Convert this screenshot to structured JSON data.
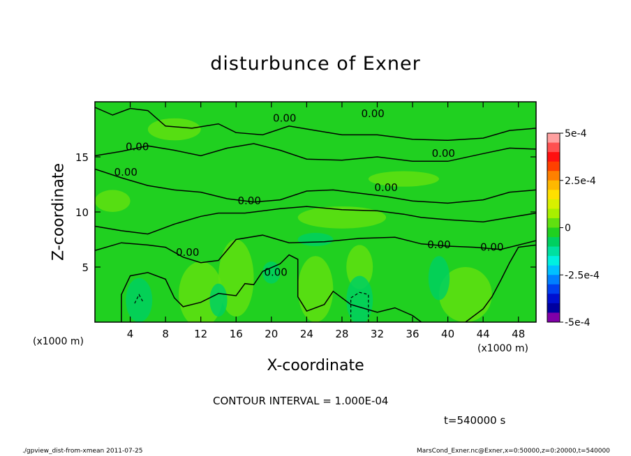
{
  "title": "disturbunce of Exner",
  "x_unit_left": "(x1000 m)",
  "x_unit_right": "(x1000 m)",
  "contour_interval": "CONTOUR INTERVAL = 1.000E-04",
  "time": "t=540000 s",
  "footer_left": "./gpview_dist-from-xmean  2011-07-25",
  "footer_right": "MarsCond_Exner.nc@Exner,x=0:50000,z=0:20000,t=540000",
  "chart_data": {
    "type": "heatmap",
    "title": "disturbunce of Exner",
    "xlabel": "X-coordinate",
    "ylabel": "Z-coordinate",
    "x_unit": "(x1000 m)",
    "xlim": [
      0,
      50
    ],
    "ylim": [
      0,
      20
    ],
    "x_ticks": [
      4,
      8,
      12,
      16,
      20,
      24,
      28,
      32,
      36,
      40,
      44,
      48
    ],
    "y_ticks": [
      5,
      10,
      15
    ],
    "contour_labels": [
      {
        "text": "0.00",
        "x": 21.5,
        "z": 18.2
      },
      {
        "text": "0.00",
        "x": 31.5,
        "z": 18.6
      },
      {
        "text": "0.00",
        "x": 4.8,
        "z": 15.6
      },
      {
        "text": "0.00",
        "x": 39.5,
        "z": 15.0
      },
      {
        "text": "0.00",
        "x": 3.5,
        "z": 13.3
      },
      {
        "text": "0.00",
        "x": 33.0,
        "z": 11.9
      },
      {
        "text": "0.00",
        "x": 17.5,
        "z": 10.7
      },
      {
        "text": "0.00",
        "x": 10.5,
        "z": 6.0
      },
      {
        "text": "0.00",
        "x": 39.0,
        "z": 6.7
      },
      {
        "text": "0.00",
        "x": 45.0,
        "z": 6.5
      },
      {
        "text": "0.00",
        "x": 20.5,
        "z": 4.2
      }
    ],
    "colorbar": {
      "min": -0.0005,
      "max": 0.0005,
      "tick_values": [
        0.0005,
        0.00025,
        0,
        -0.00025,
        -0.0005
      ],
      "tick_labels": [
        "5e-4",
        "2.5e-4",
        "0",
        "-2.5e-4",
        "-5e-4"
      ],
      "colors": [
        "#ffa0a0",
        "#ff5050",
        "#ff1010",
        "#ff4000",
        "#ff8000",
        "#ffb800",
        "#ffe000",
        "#d8f000",
        "#a8f000",
        "#60e010",
        "#20d020",
        "#00d060",
        "#00e0a0",
        "#00f0e0",
        "#00c0ff",
        "#0080ff",
        "#0040f0",
        "#0010d0",
        "#0000a0",
        "#8000a8"
      ]
    },
    "contour_interval": 0.0001
  }
}
